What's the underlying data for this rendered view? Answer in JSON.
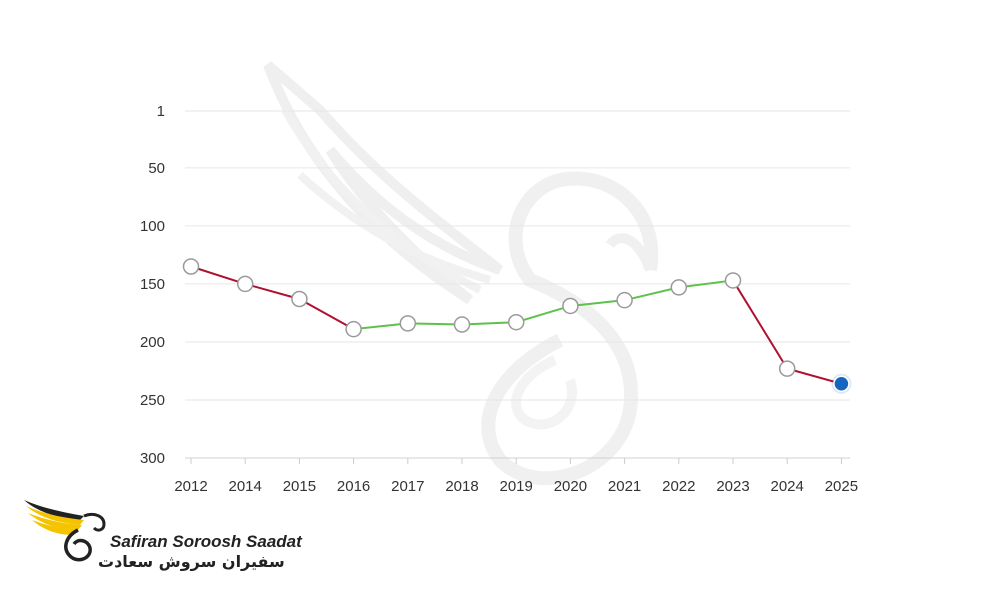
{
  "chart_data": {
    "type": "line",
    "x_categories": [
      "2012",
      "2014",
      "2015",
      "2016",
      "2017",
      "2018",
      "2019",
      "2020",
      "2021",
      "2022",
      "2023",
      "2024",
      "2025"
    ],
    "values": [
      135,
      150,
      163,
      189,
      184,
      185,
      183,
      169,
      164,
      153,
      147,
      223,
      236
    ],
    "segment_colors": [
      "#b0102f",
      "#b0102f",
      "#b0102f",
      "#5cc24a",
      "#5cc24a",
      "#5cc24a",
      "#5cc24a",
      "#5cc24a",
      "#5cc24a",
      "#5cc24a",
      "#b0102f",
      "#b0102f"
    ],
    "y_ticks": [
      1,
      50,
      100,
      150,
      200,
      250,
      300
    ],
    "y_tick_labels": [
      "1",
      "50",
      "100",
      "150",
      "200",
      "250",
      "300"
    ],
    "ylim": [
      1,
      300
    ],
    "y_reversed": true,
    "grid": true,
    "xlabel": "",
    "ylabel": "",
    "title": "",
    "highlight_last_point_color": "#1565c0"
  },
  "brand": {
    "name_en": "Safiran Soroosh Saadat",
    "name_fa": "سفیران سروش سعادت",
    "colors": {
      "wing": "#f5c400",
      "text": "#222222"
    }
  }
}
